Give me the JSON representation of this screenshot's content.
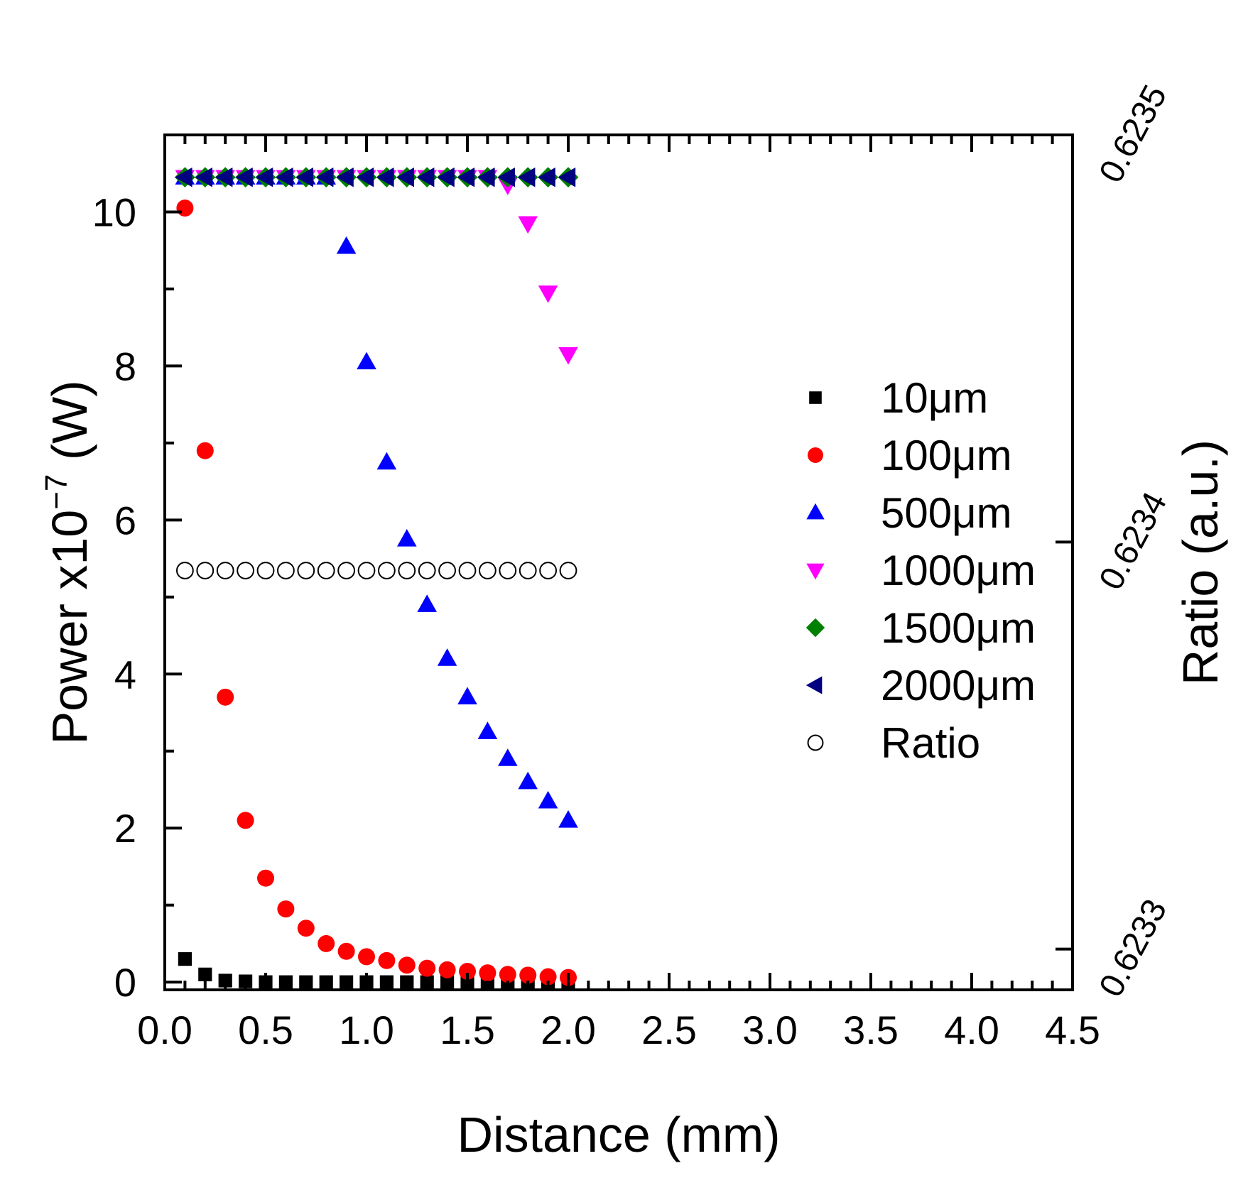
{
  "chart_data": {
    "type": "scatter",
    "title": "",
    "xlabel": "Distance (mm)",
    "ylabel": {
      "main": "Power x10",
      "exp": "−7",
      "unit": " (W)"
    },
    "y2label": "Ratio (a.u.)",
    "xlim": [
      0.0,
      4.5
    ],
    "ylim": [
      -0.1,
      11.0
    ],
    "y2lim": [
      0.62329,
      0.6235
    ],
    "x_ticks": [
      "0.0",
      "0.5",
      "1.0",
      "1.5",
      "2.0",
      "2.5",
      "3.0",
      "3.5",
      "4.0",
      "4.5"
    ],
    "y_ticks": [
      "0",
      "2",
      "4",
      "6",
      "8",
      "10"
    ],
    "y2_ticks": [
      "0.6233",
      "0.6234",
      "0.6235"
    ],
    "legend_position": "right",
    "series": [
      {
        "name": "10μm",
        "marker": "square",
        "color": "#000000",
        "axis": "left",
        "x": [
          0.1,
          0.2,
          0.3,
          0.4,
          0.5,
          0.6,
          0.7,
          0.8,
          0.9,
          1.0,
          1.1,
          1.2,
          1.3,
          1.4,
          1.5,
          1.6,
          1.7,
          1.8,
          1.9,
          2.0
        ],
        "y": [
          0.3,
          0.1,
          0.02,
          0.01,
          0,
          0,
          0,
          0,
          0,
          0,
          0,
          0,
          0,
          0,
          0,
          0,
          0,
          0,
          0,
          0
        ]
      },
      {
        "name": "100μm",
        "marker": "circle",
        "color": "#ff0000",
        "axis": "left",
        "x": [
          0.1,
          0.2,
          0.3,
          0.4,
          0.5,
          0.6,
          0.7,
          0.8,
          0.9,
          1.0,
          1.1,
          1.2,
          1.3,
          1.4,
          1.5,
          1.6,
          1.7,
          1.8,
          1.9,
          2.0
        ],
        "y": [
          10.05,
          6.9,
          3.7,
          2.1,
          1.35,
          0.95,
          0.7,
          0.5,
          0.4,
          0.33,
          0.28,
          0.22,
          0.18,
          0.16,
          0.14,
          0.12,
          0.1,
          0.09,
          0.07,
          0.06
        ]
      },
      {
        "name": "500μm",
        "marker": "triangle-up",
        "color": "#0000ff",
        "axis": "left",
        "x": [
          0.1,
          0.2,
          0.3,
          0.4,
          0.5,
          0.6,
          0.7,
          0.8,
          0.9,
          1.0,
          1.1,
          1.2,
          1.3,
          1.4,
          1.5,
          1.6,
          1.7,
          1.8,
          1.9,
          2.0
        ],
        "y": [
          10.45,
          10.45,
          10.45,
          10.45,
          10.45,
          10.45,
          10.45,
          10.45,
          9.55,
          8.05,
          6.75,
          5.75,
          4.9,
          4.2,
          3.7,
          3.25,
          2.9,
          2.6,
          2.35,
          2.1
        ]
      },
      {
        "name": "1000μm",
        "marker": "triangle-down",
        "color": "#ff00ff",
        "axis": "left",
        "x": [
          0.1,
          0.2,
          0.3,
          0.4,
          0.5,
          0.6,
          0.7,
          0.8,
          0.9,
          1.0,
          1.1,
          1.2,
          1.3,
          1.4,
          1.5,
          1.6,
          1.7,
          1.8,
          1.9,
          2.0
        ],
        "y": [
          10.45,
          10.45,
          10.45,
          10.45,
          10.45,
          10.45,
          10.45,
          10.45,
          10.45,
          10.45,
          10.45,
          10.45,
          10.45,
          10.45,
          10.45,
          10.45,
          10.35,
          9.85,
          8.95,
          8.15
        ]
      },
      {
        "name": "1500μm",
        "marker": "diamond",
        "color": "#008000",
        "axis": "left",
        "x": [
          0.1,
          0.2,
          0.3,
          0.4,
          0.5,
          0.6,
          0.7,
          0.8,
          0.9,
          1.0,
          1.1,
          1.2,
          1.3,
          1.4,
          1.5,
          1.6,
          1.7,
          1.8,
          1.9,
          2.0
        ],
        "y": [
          10.45,
          10.45,
          10.45,
          10.45,
          10.45,
          10.45,
          10.45,
          10.45,
          10.45,
          10.45,
          10.45,
          10.45,
          10.45,
          10.45,
          10.45,
          10.45,
          10.45,
          10.45,
          10.45,
          10.45
        ]
      },
      {
        "name": "2000μm",
        "marker": "triangle-left",
        "color": "#000080",
        "axis": "left",
        "x": [
          0.1,
          0.2,
          0.3,
          0.4,
          0.5,
          0.6,
          0.7,
          0.8,
          0.9,
          1.0,
          1.1,
          1.2,
          1.3,
          1.4,
          1.5,
          1.6,
          1.7,
          1.8,
          1.9,
          2.0
        ],
        "y": [
          10.45,
          10.45,
          10.45,
          10.45,
          10.45,
          10.45,
          10.45,
          10.45,
          10.45,
          10.45,
          10.45,
          10.45,
          10.45,
          10.45,
          10.45,
          10.45,
          10.45,
          10.45,
          10.45,
          10.45
        ]
      },
      {
        "name": "Ratio",
        "marker": "open-circle",
        "color": "#000000",
        "axis": "right",
        "x": [
          0.1,
          0.2,
          0.3,
          0.4,
          0.5,
          0.6,
          0.7,
          0.8,
          0.9,
          1.0,
          1.1,
          1.2,
          1.3,
          1.4,
          1.5,
          1.6,
          1.7,
          1.8,
          1.9,
          2.0
        ],
        "y": [
          0.623393,
          0.623393,
          0.623393,
          0.623393,
          0.623393,
          0.623393,
          0.623393,
          0.623393,
          0.623393,
          0.623393,
          0.623393,
          0.623393,
          0.623393,
          0.623393,
          0.623393,
          0.623393,
          0.623393,
          0.623393,
          0.623393,
          0.623393
        ]
      }
    ]
  }
}
